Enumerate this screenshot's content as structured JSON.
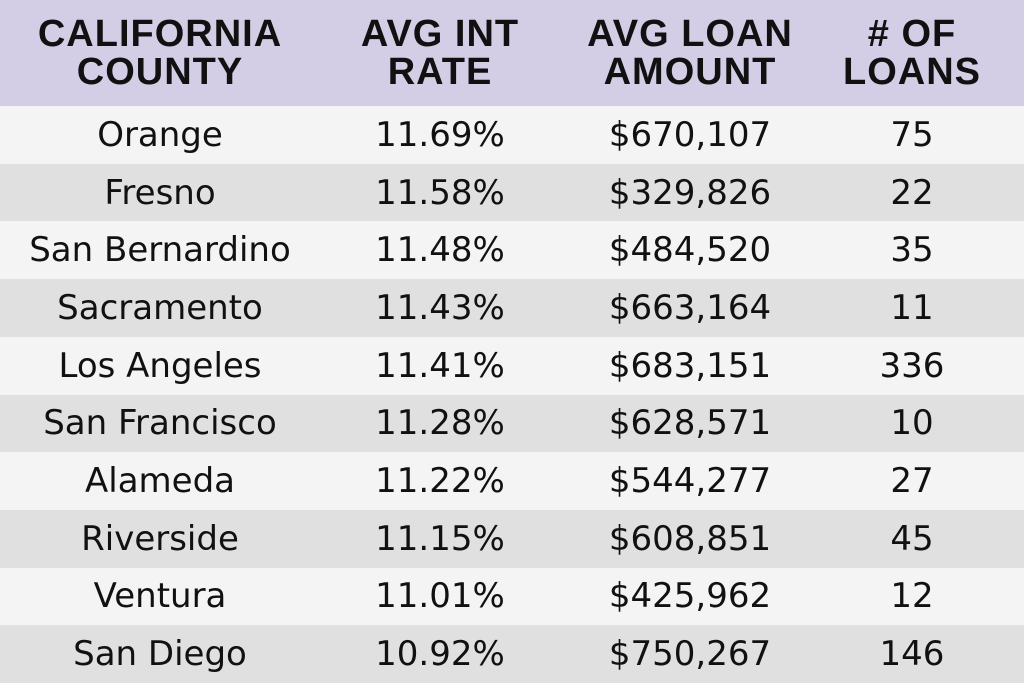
{
  "table": {
    "header": [
      [
        "CALIFORNIA",
        "COUNTY"
      ],
      [
        "AVG INT",
        "RATE"
      ],
      [
        "AVG LOAN",
        "AMOUNT"
      ],
      [
        "# OF",
        "LOANS"
      ]
    ],
    "rows": [
      [
        "Orange",
        "11.69%",
        "$670,107",
        "75"
      ],
      [
        "Fresno",
        "11.58%",
        "$329,826",
        "22"
      ],
      [
        "San Bernardino",
        "11.48%",
        "$484,520",
        "35"
      ],
      [
        "Sacramento",
        "11.43%",
        "$663,164",
        "11"
      ],
      [
        "Los Angeles",
        "11.41%",
        "$683,151",
        "336"
      ],
      [
        "San Francisco",
        "11.28%",
        "$628,571",
        "10"
      ],
      [
        "Alameda",
        "11.22%",
        "$544,277",
        "27"
      ],
      [
        "Riverside",
        "11.15%",
        "$608,851",
        "45"
      ],
      [
        "Ventura",
        "11.01%",
        "$425,962",
        "12"
      ],
      [
        "San Diego",
        "10.92%",
        "$750,267",
        "146"
      ]
    ]
  }
}
